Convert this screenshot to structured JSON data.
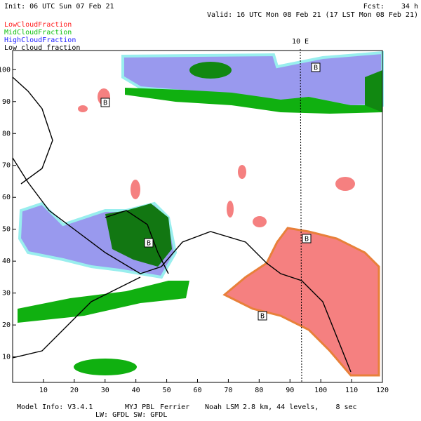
{
  "header": {
    "init": "Init: 06 UTC Sun 07 Feb 21",
    "fcst": "Fcst:    34 h",
    "valid": "Valid: 16 UTC Mon 08 Feb 21 (17 LST Mon 08 Feb 21)"
  },
  "legend": [
    {
      "name": "LowCloudFraction",
      "color": "#ff2020"
    },
    {
      "name": "MidCloudFraction",
      "color": "#10c010"
    },
    {
      "name": "HighCloudFraction",
      "color": "#2020ff"
    },
    {
      "name": "Low cloud fraction",
      "color": "#000000"
    }
  ],
  "map": {
    "meridian_label": "10 E",
    "xlim": [
      0,
      120
    ],
    "ylim": [
      2,
      106
    ],
    "xticks": [
      10,
      20,
      30,
      40,
      50,
      60,
      70,
      80,
      90,
      100,
      110,
      120
    ],
    "yticks": [
      10,
      20,
      30,
      40,
      50,
      60,
      70,
      80,
      90,
      100
    ],
    "pressure_labels": [
      "B",
      "B",
      "B",
      "B",
      "B"
    ]
  },
  "footer": {
    "model": "Model Info: V3.4.1",
    "pbl": "MYJ PBL",
    "mp": "Ferrier",
    "lsm": "Noah LSM",
    "grid": "2.8 km, 44 levels,    8 sec",
    "rad": "LW: GFDL SW: GFDL"
  }
}
